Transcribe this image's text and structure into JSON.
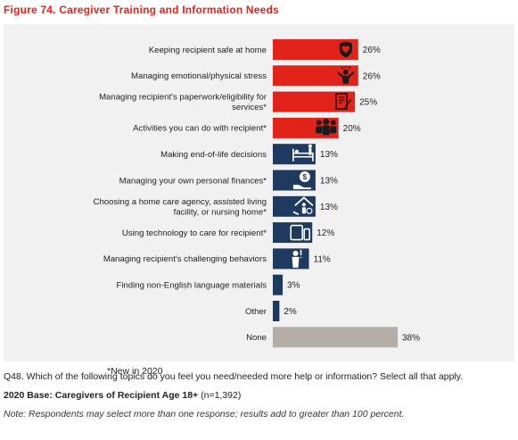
{
  "figure_title": "Figure 74. Caregiver Training and Information Needs",
  "new_note": "*New in 2020",
  "question": "Q48.  Which of the following topics do you feel you need/needed more help or information? Select all that apply.",
  "base_label": "2020 Base: Caregivers of Recipient Age 18+",
  "base_n": " (n=1,392)",
  "note": "Note: Respondents may select more than one response; results add to greater than 100 percent.",
  "colors": {
    "red": "#e2231a",
    "navy": "#1f3a5f",
    "gray": "#b5ada8",
    "title": "#e2231a"
  },
  "chart_data": {
    "type": "bar",
    "orientation": "horizontal",
    "xlim": [
      0,
      40
    ],
    "categories": [
      [
        "Keeping recipient safe at home"
      ],
      [
        "Managing emotional/physical stress"
      ],
      [
        "Managing recipient's paperwork/eligibility for",
        "services*"
      ],
      [
        "Activities you can do with recipient*"
      ],
      [
        "Making end-of-life decisions"
      ],
      [
        "Managing your own personal finances*"
      ],
      [
        "Choosing a home care agency, assisted living",
        "facility, or nursing home*"
      ],
      [
        "Using technology to care for recipient*"
      ],
      [
        "Managing recipient's challenging behaviors"
      ],
      [
        "Finding non-English language materials"
      ],
      [
        "Other"
      ],
      [
        "None"
      ]
    ],
    "values": [
      26,
      26,
      25,
      20,
      13,
      13,
      13,
      12,
      11,
      3,
      2,
      38
    ],
    "value_labels": [
      "26%",
      "26%",
      "25%",
      "20%",
      "13%",
      "13%",
      "13%",
      "12%",
      "11%",
      "3%",
      "2%",
      "38%"
    ],
    "bar_colors": [
      "red",
      "red",
      "red",
      "red",
      "navy",
      "navy",
      "navy",
      "navy",
      "navy",
      "navy",
      "navy",
      "gray"
    ],
    "icons": [
      "shield-heart-icon",
      "stress-person-icon",
      "document-pen-icon",
      "people-group-icon",
      "bed-person-icon",
      "money-hand-icon",
      "house-hand-icon",
      "devices-icon",
      "person-behavior-icon",
      "",
      "",
      ""
    ]
  }
}
